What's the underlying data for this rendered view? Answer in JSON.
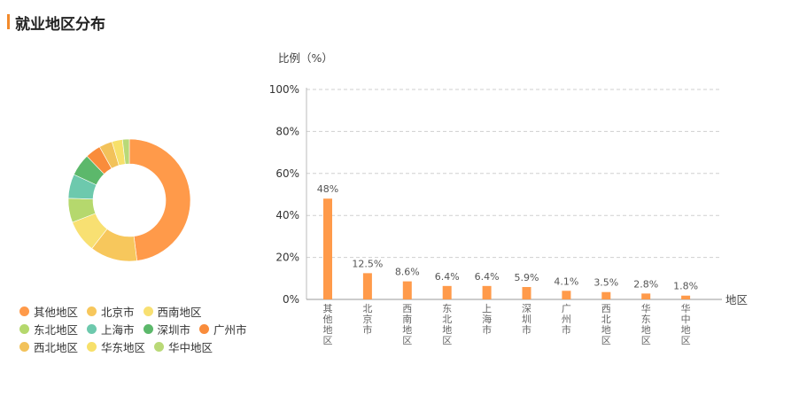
{
  "header": {
    "title": "就业地区分布"
  },
  "legend": {
    "rows": [
      [
        {
          "label": "其他地区",
          "color": "#ff9a4a"
        },
        {
          "label": "北京市",
          "color": "#f7c75c"
        },
        {
          "label": "西南地区",
          "color": "#f8e072"
        }
      ],
      [
        {
          "label": "东北地区",
          "color": "#b5d86d"
        },
        {
          "label": "上海市",
          "color": "#6dc9ad"
        },
        {
          "label": "深圳市",
          "color": "#5cb86b"
        },
        {
          "label": "广州市",
          "color": "#f98c3b"
        }
      ],
      [
        {
          "label": "西北地区",
          "color": "#f2c25a"
        },
        {
          "label": "华东地区",
          "color": "#f7e06a"
        },
        {
          "label": "华中地区",
          "color": "#b9d977"
        }
      ]
    ]
  },
  "chart_data": [
    {
      "type": "pie",
      "donut": true,
      "categories": [
        "其他地区",
        "北京市",
        "西南地区",
        "东北地区",
        "上海市",
        "深圳市",
        "广州市",
        "西北地区",
        "华东地区",
        "华中地区"
      ],
      "values": [
        48,
        12.5,
        8.6,
        6.4,
        6.4,
        5.9,
        4.1,
        3.5,
        2.8,
        1.8
      ],
      "colors": [
        "#ff9a4a",
        "#f7c75c",
        "#f8e072",
        "#b5d86d",
        "#6dc9ad",
        "#5cb86b",
        "#f98c3b",
        "#f2c25a",
        "#f7e06a",
        "#b9d977"
      ],
      "legend_position": "bottom-left"
    },
    {
      "type": "bar",
      "categories": [
        "其他地区",
        "北京市",
        "西南地区",
        "东北地区",
        "上海市",
        "深圳市",
        "广州市",
        "西北地区",
        "华东地区",
        "华中地区"
      ],
      "values": [
        48,
        12.5,
        8.6,
        6.4,
        6.4,
        5.9,
        4.1,
        3.5,
        2.8,
        1.8
      ],
      "value_labels": [
        "48%",
        "12.5%",
        "8.6%",
        "6.4%",
        "6.4%",
        "5.9%",
        "4.1%",
        "3.5%",
        "2.8%",
        "1.8%"
      ],
      "ylabel": "比例（%）",
      "xlabel": "地区",
      "ylim": [
        0,
        100
      ],
      "yticks": [
        0,
        20,
        40,
        60,
        80,
        100
      ],
      "ytick_labels": [
        "0%",
        "20%",
        "40%",
        "60%",
        "80%",
        "100%"
      ],
      "grid": true,
      "bar_color": "#ff9a4a"
    }
  ]
}
